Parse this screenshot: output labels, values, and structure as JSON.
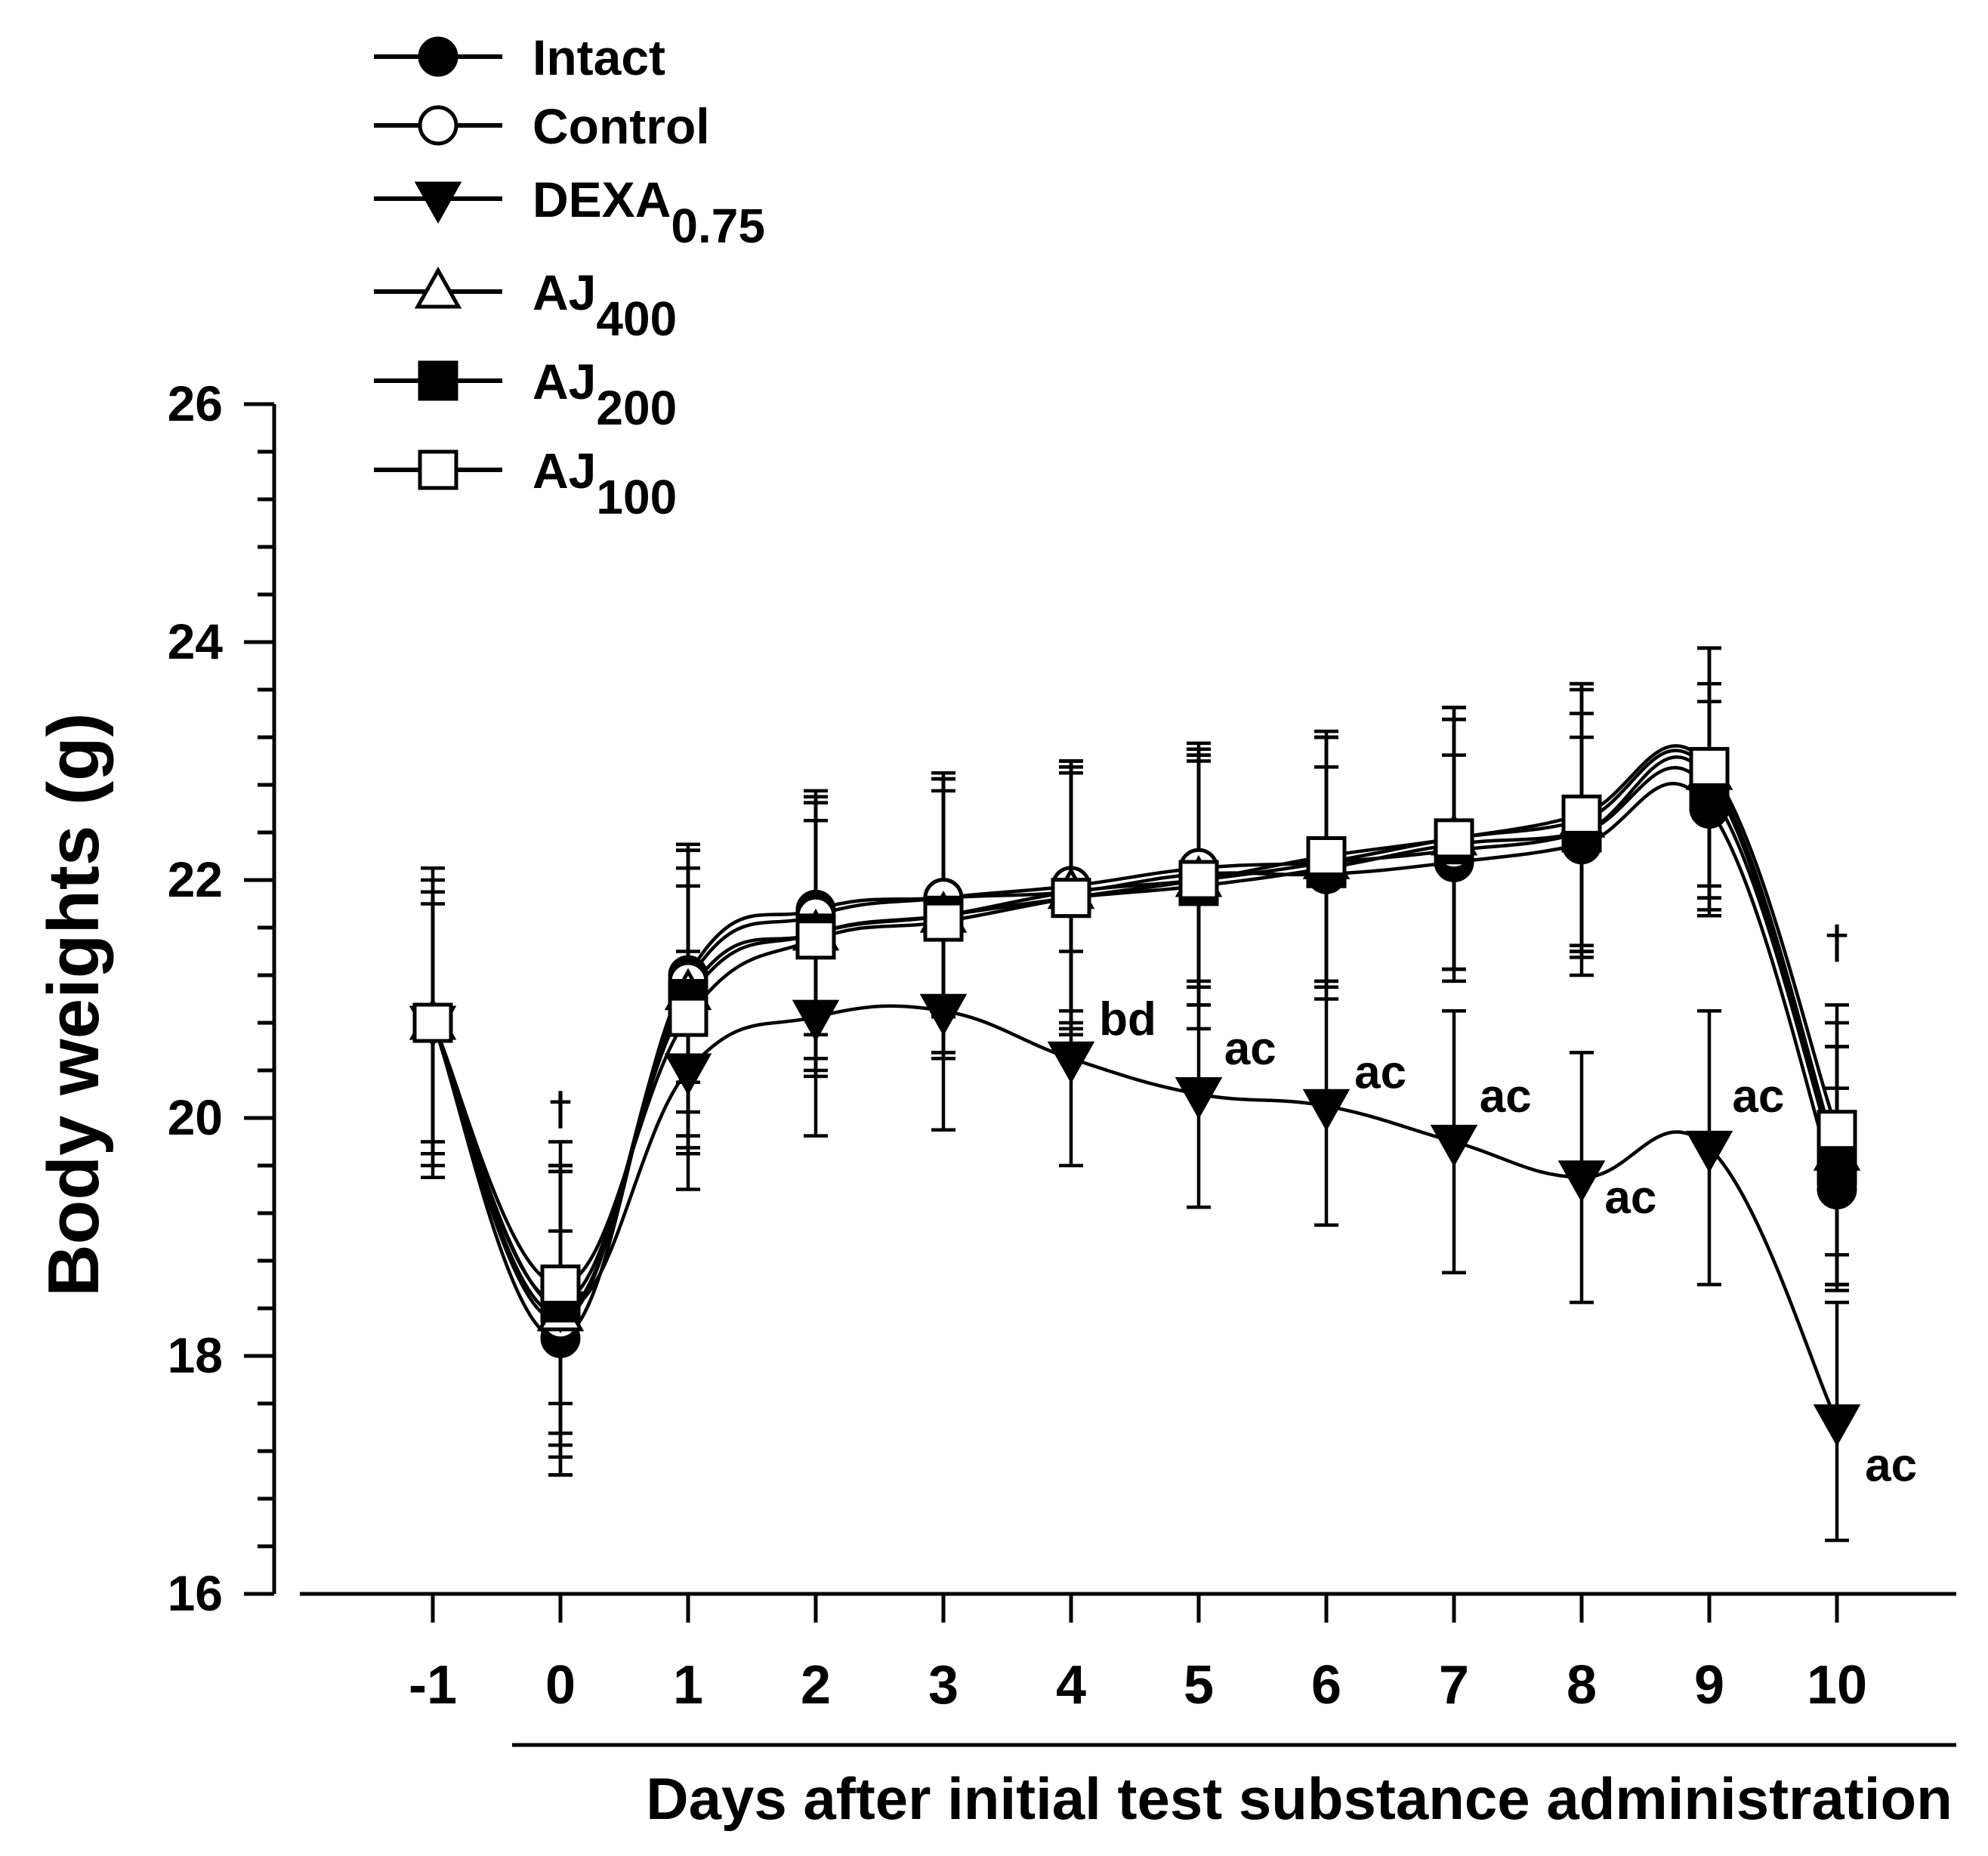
{
  "chart_data": {
    "type": "line",
    "xlabel": "Days after initial test substance administration",
    "ylabel": "Body weights (g)",
    "x": [
      -1,
      0,
      1,
      2,
      3,
      4,
      5,
      6,
      7,
      8,
      9,
      10
    ],
    "x_tick_labels": [
      "-1",
      "0",
      "1",
      "2",
      "3",
      "4",
      "5",
      "6",
      "7",
      "8",
      "9",
      "10"
    ],
    "ylim": [
      16,
      26
    ],
    "y_ticks": [
      16,
      18,
      20,
      22,
      24,
      26
    ],
    "y_minor_step": 0.4,
    "legend_position": "top-left",
    "colors": {
      "line": "#000000",
      "background": "#ffffff"
    },
    "series": [
      {
        "name": "Intact",
        "sub": "",
        "marker": "circle-filled",
        "values": [
          20.8,
          18.15,
          21.2,
          21.75,
          21.85,
          21.9,
          22.05,
          22.05,
          22.15,
          22.3,
          22.6,
          19.4
        ],
        "errors": [
          1.1,
          0.9,
          0.9,
          0.9,
          1.0,
          1.0,
          0.95,
          0.9,
          0.9,
          0.9,
          0.9,
          0.85
        ]
      },
      {
        "name": "Control",
        "sub": "",
        "marker": "circle-open",
        "values": [
          20.8,
          18.3,
          21.15,
          21.7,
          21.85,
          21.95,
          22.1,
          22.15,
          22.25,
          22.4,
          22.85,
          19.6
        ],
        "errors": [
          1.2,
          1.3,
          1.1,
          1.0,
          1.0,
          1.05,
          1.0,
          1.05,
          1.1,
          1.2,
          1.1,
          1.0
        ]
      },
      {
        "name": "DEXA",
        "sub": "0.75",
        "marker": "triangle-down-filled",
        "values": [
          20.8,
          18.4,
          20.4,
          20.85,
          20.9,
          20.5,
          20.2,
          20.1,
          19.8,
          19.5,
          19.75,
          17.45
        ],
        "errors": [
          1.1,
          1.4,
          1.0,
          1.0,
          1.0,
          0.9,
          0.95,
          1.0,
          1.1,
          1.05,
          1.15,
          1.0
        ]
      },
      {
        "name": "AJ",
        "sub": "400",
        "marker": "triangle-up-open",
        "values": [
          20.8,
          18.35,
          21.05,
          21.55,
          21.7,
          21.9,
          22.0,
          22.15,
          22.35,
          22.5,
          22.9,
          19.7
        ],
        "errors": [
          1.3,
          1.2,
          1.2,
          1.15,
          1.2,
          1.1,
          1.05,
          1.05,
          1.1,
          1.15,
          1.05,
          1.1
        ]
      },
      {
        "name": "AJ",
        "sub": "200",
        "marker": "square-filled",
        "values": [
          20.8,
          18.45,
          21.0,
          21.55,
          21.7,
          21.85,
          21.95,
          22.1,
          22.3,
          22.4,
          22.75,
          19.6
        ],
        "errors": [
          1.0,
          1.1,
          1.3,
          1.2,
          1.15,
          1.15,
          1.2,
          1.1,
          1.05,
          1.0,
          0.9,
          1.0
        ]
      },
      {
        "name": "AJ",
        "sub": "100",
        "marker": "square-open",
        "values": [
          20.8,
          18.6,
          20.85,
          21.5,
          21.65,
          21.85,
          22.0,
          22.2,
          22.35,
          22.55,
          22.95,
          19.9
        ],
        "errors": [
          1.1,
          1.0,
          1.1,
          1.0,
          1.1,
          1.1,
          1.05,
          1.05,
          1.1,
          1.1,
          1.0,
          1.05
        ]
      }
    ],
    "annotations": [
      {
        "text": "†",
        "x": 0,
        "y": 19.95,
        "anchor": "middle"
      },
      {
        "text": "bd",
        "x": 4.22,
        "y": 20.7,
        "anchor": "start"
      },
      {
        "text": "ac",
        "x": 5.2,
        "y": 20.45,
        "anchor": "start"
      },
      {
        "text": "ac",
        "x": 6.22,
        "y": 20.25,
        "anchor": "start"
      },
      {
        "text": "ac",
        "x": 7.2,
        "y": 20.05,
        "anchor": "start"
      },
      {
        "text": "ac",
        "x": 8.18,
        "y": 19.2,
        "anchor": "start"
      },
      {
        "text": "ac",
        "x": 9.18,
        "y": 20.05,
        "anchor": "start"
      },
      {
        "text": "†",
        "x": 10,
        "y": 21.35,
        "anchor": "middle"
      },
      {
        "text": "ac",
        "x": 10.22,
        "y": 16.95,
        "anchor": "start"
      }
    ]
  }
}
